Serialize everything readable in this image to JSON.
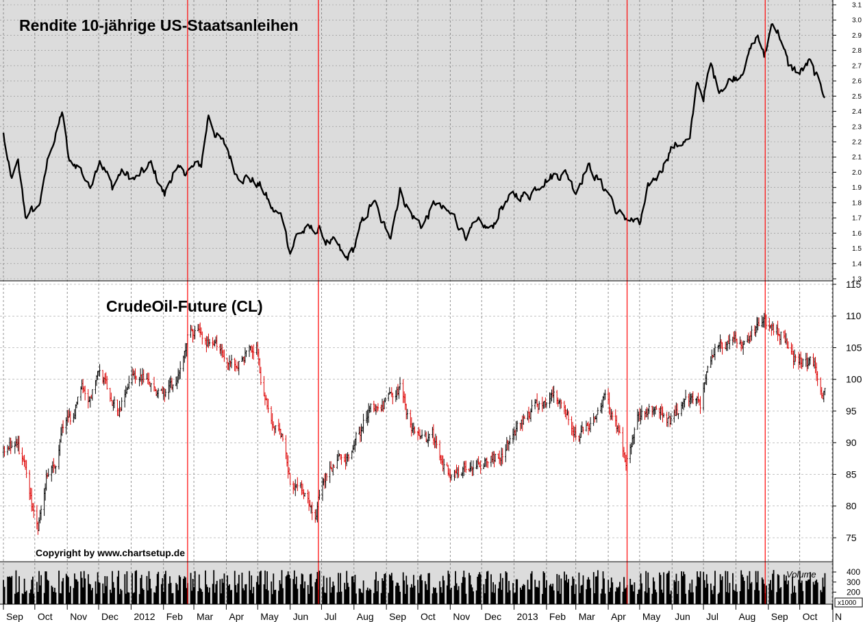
{
  "chart_data": [
    {
      "type": "line",
      "title": "Rendite 10-jährige US-Staatsanleihen",
      "ylim": [
        1.3,
        3.1
      ],
      "y_ticks": [
        "1.3",
        "1.4",
        "1.5",
        "1.6",
        "1.7",
        "1.8",
        "1.9",
        "2.0",
        "2.1",
        "2.2",
        "2.3",
        "2.4",
        "2.5",
        "2.6",
        "2.7",
        "2.8",
        "2.9",
        "3.0",
        "3.1"
      ],
      "grid": true,
      "background": "#dcdcdc",
      "line_color": "#000000",
      "keypoints": [
        [
          "2011-09-01",
          2.25
        ],
        [
          "2011-09-08",
          1.95
        ],
        [
          "2011-09-15",
          2.05
        ],
        [
          "2011-09-22",
          1.72
        ],
        [
          "2011-10-03",
          1.76
        ],
        [
          "2011-10-08",
          1.85
        ],
        [
          "2011-10-15",
          2.15
        ],
        [
          "2011-10-22",
          2.25
        ],
        [
          "2011-10-27",
          2.4
        ],
        [
          "2011-11-03",
          2.05
        ],
        [
          "2011-11-12",
          2.05
        ],
        [
          "2011-11-22",
          1.9
        ],
        [
          "2011-12-02",
          2.1
        ],
        [
          "2011-12-14",
          1.9
        ],
        [
          "2011-12-22",
          2.0
        ],
        [
          "2012-01-05",
          1.95
        ],
        [
          "2012-01-20",
          2.05
        ],
        [
          "2012-02-02",
          1.85
        ],
        [
          "2012-02-10",
          2.0
        ],
        [
          "2012-02-20",
          2.0
        ],
        [
          "2012-03-08",
          2.05
        ],
        [
          "2012-03-15",
          2.38
        ],
        [
          "2012-03-22",
          2.25
        ],
        [
          "2012-04-02",
          2.15
        ],
        [
          "2012-04-10",
          2.0
        ],
        [
          "2012-04-25",
          1.95
        ],
        [
          "2012-05-05",
          1.9
        ],
        [
          "2012-05-15",
          1.75
        ],
        [
          "2012-05-25",
          1.7
        ],
        [
          "2012-06-01",
          1.48
        ],
        [
          "2012-06-08",
          1.6
        ],
        [
          "2012-06-18",
          1.62
        ],
        [
          "2012-06-28",
          1.62
        ],
        [
          "2012-07-05",
          1.55
        ],
        [
          "2012-07-15",
          1.52
        ],
        [
          "2012-07-24",
          1.42
        ],
        [
          "2012-08-01",
          1.5
        ],
        [
          "2012-08-08",
          1.65
        ],
        [
          "2012-08-20",
          1.82
        ],
        [
          "2012-08-28",
          1.65
        ],
        [
          "2012-09-05",
          1.6
        ],
        [
          "2012-09-14",
          1.88
        ],
        [
          "2012-09-25",
          1.72
        ],
        [
          "2012-10-05",
          1.65
        ],
        [
          "2012-10-18",
          1.8
        ],
        [
          "2012-10-25",
          1.75
        ],
        [
          "2012-11-05",
          1.7
        ],
        [
          "2012-11-16",
          1.6
        ],
        [
          "2012-11-28",
          1.65
        ],
        [
          "2012-12-10",
          1.62
        ],
        [
          "2012-12-20",
          1.78
        ],
        [
          "2013-01-03",
          1.85
        ],
        [
          "2013-01-15",
          1.85
        ],
        [
          "2013-01-28",
          1.95
        ],
        [
          "2013-02-08",
          1.98
        ],
        [
          "2013-02-20",
          2.0
        ],
        [
          "2013-03-01",
          1.88
        ],
        [
          "2013-03-12",
          2.05
        ],
        [
          "2013-03-22",
          1.95
        ],
        [
          "2013-04-03",
          1.85
        ],
        [
          "2013-04-10",
          1.72
        ],
        [
          "2013-04-20",
          1.7
        ],
        [
          "2013-05-01",
          1.65
        ],
        [
          "2013-05-10",
          1.9
        ],
        [
          "2013-05-20",
          2.0
        ],
        [
          "2013-05-30",
          2.15
        ],
        [
          "2013-06-10",
          2.2
        ],
        [
          "2013-06-18",
          2.2
        ],
        [
          "2013-06-25",
          2.6
        ],
        [
          "2013-07-01",
          2.5
        ],
        [
          "2013-07-08",
          2.7
        ],
        [
          "2013-07-15",
          2.55
        ],
        [
          "2013-07-25",
          2.6
        ],
        [
          "2013-08-05",
          2.65
        ],
        [
          "2013-08-15",
          2.8
        ],
        [
          "2013-08-22",
          2.9
        ],
        [
          "2013-08-28",
          2.75
        ],
        [
          "2013-09-05",
          3.0
        ],
        [
          "2013-09-12",
          2.9
        ],
        [
          "2013-09-20",
          2.7
        ],
        [
          "2013-10-01",
          2.65
        ],
        [
          "2013-10-10",
          2.72
        ],
        [
          "2013-10-18",
          2.6
        ],
        [
          "2013-10-25",
          2.52
        ]
      ]
    },
    {
      "type": "bar",
      "subtype": "ohlc",
      "title": "CrudeOil-Future (CL)",
      "ylim": [
        72,
        115
      ],
      "y_ticks": [
        "75",
        "80",
        "85",
        "90",
        "95",
        "100",
        "105",
        "110",
        "115"
      ],
      "grid": true,
      "up_color": "#000000",
      "down_color": "#dd0000",
      "keypoints": [
        [
          "2011-09-01",
          88.5
        ],
        [
          "2011-09-12",
          90
        ],
        [
          "2011-09-20",
          87
        ],
        [
          "2011-09-28",
          80
        ],
        [
          "2011-10-04",
          77
        ],
        [
          "2011-10-12",
          85
        ],
        [
          "2011-10-20",
          86
        ],
        [
          "2011-10-28",
          93
        ],
        [
          "2011-11-05",
          94
        ],
        [
          "2011-11-15",
          99
        ],
        [
          "2011-11-22",
          97
        ],
        [
          "2011-12-02",
          101
        ],
        [
          "2011-12-12",
          98
        ],
        [
          "2011-12-20",
          95
        ],
        [
          "2012-01-03",
          101
        ],
        [
          "2012-01-15",
          100
        ],
        [
          "2012-01-25",
          98
        ],
        [
          "2012-02-05",
          98
        ],
        [
          "2012-02-15",
          100
        ],
        [
          "2012-02-25",
          107
        ],
        [
          "2012-03-03",
          108
        ],
        [
          "2012-03-15",
          106
        ],
        [
          "2012-03-28",
          104
        ],
        [
          "2012-04-10",
          102
        ],
        [
          "2012-04-20",
          104
        ],
        [
          "2012-04-30",
          105
        ],
        [
          "2012-05-05",
          98
        ],
        [
          "2012-05-15",
          93
        ],
        [
          "2012-05-25",
          90
        ],
        [
          "2012-06-01",
          84
        ],
        [
          "2012-06-12",
          83
        ],
        [
          "2012-06-25",
          79
        ],
        [
          "2012-07-05",
          85
        ],
        [
          "2012-07-15",
          87
        ],
        [
          "2012-07-25",
          88
        ],
        [
          "2012-08-05",
          91
        ],
        [
          "2012-08-15",
          95
        ],
        [
          "2012-08-28",
          96
        ],
        [
          "2012-09-08",
          97
        ],
        [
          "2012-09-14",
          99
        ],
        [
          "2012-09-25",
          92
        ],
        [
          "2012-10-05",
          90
        ],
        [
          "2012-10-15",
          91
        ],
        [
          "2012-10-25",
          86
        ],
        [
          "2012-11-05",
          85
        ],
        [
          "2012-11-15",
          86
        ],
        [
          "2012-11-25",
          87
        ],
        [
          "2012-12-05",
          87
        ],
        [
          "2012-12-18",
          88
        ],
        [
          "2013-01-03",
          92
        ],
        [
          "2013-01-18",
          95
        ],
        [
          "2013-01-30",
          97
        ],
        [
          "2013-02-10",
          97
        ],
        [
          "2013-02-22",
          94
        ],
        [
          "2013-03-05",
          91
        ],
        [
          "2013-03-15",
          93
        ],
        [
          "2013-03-28",
          97
        ],
        [
          "2013-04-05",
          94
        ],
        [
          "2013-04-12",
          91
        ],
        [
          "2013-04-18",
          87
        ],
        [
          "2013-04-30",
          94
        ],
        [
          "2013-05-10",
          96
        ],
        [
          "2013-05-20",
          95
        ],
        [
          "2013-05-30",
          93
        ],
        [
          "2013-06-10",
          96
        ],
        [
          "2013-06-20",
          97
        ],
        [
          "2013-06-28",
          96
        ],
        [
          "2013-07-05",
          103
        ],
        [
          "2013-07-15",
          106
        ],
        [
          "2013-07-25",
          105
        ],
        [
          "2013-08-05",
          106
        ],
        [
          "2013-08-15",
          107
        ],
        [
          "2013-08-27",
          109
        ],
        [
          "2013-09-05",
          108
        ],
        [
          "2013-09-15",
          107
        ],
        [
          "2013-09-25",
          103
        ],
        [
          "2013-10-05",
          103
        ],
        [
          "2013-10-15",
          102
        ],
        [
          "2013-10-22",
          98
        ]
      ]
    },
    {
      "type": "bar",
      "title": "Volume",
      "unit_label": "x1000",
      "y_ticks": [
        "200",
        "300",
        "400"
      ],
      "background": "#dcdcdc",
      "bar_color": "#000000",
      "typical_range": [
        180,
        420
      ]
    }
  ],
  "x_axis": {
    "labels": [
      "Sep",
      "Oct",
      "Nov",
      "Dec",
      "2012",
      "Feb",
      "Mar",
      "Apr",
      "May",
      "Jun",
      "Jul",
      "Aug",
      "Sep",
      "Oct",
      "Nov",
      "Dec",
      "2013",
      "Feb",
      "Mar",
      "Apr",
      "May",
      "Jun",
      "Jul",
      "Aug",
      "Sep",
      "Oct",
      "N"
    ],
    "dates": [
      "2011-09-01",
      "2011-10-01",
      "2011-11-01",
      "2011-12-01",
      "2012-01-01",
      "2012-02-01",
      "2012-03-01",
      "2012-04-01",
      "2012-05-01",
      "2012-06-01",
      "2012-07-01",
      "2012-08-01",
      "2012-09-01",
      "2012-10-01",
      "2012-11-01",
      "2012-12-01",
      "2013-01-01",
      "2013-02-01",
      "2013-03-01",
      "2013-04-01",
      "2013-05-01",
      "2013-06-01",
      "2013-07-01",
      "2013-08-01",
      "2013-09-01",
      "2013-10-01",
      "2013-11-01"
    ]
  },
  "marker_lines": {
    "color": "#ff0000",
    "dates": [
      "2012-02-24",
      "2012-06-28",
      "2013-04-19",
      "2013-08-29"
    ]
  },
  "copyright": "Copyright by www.chartsetup.de"
}
